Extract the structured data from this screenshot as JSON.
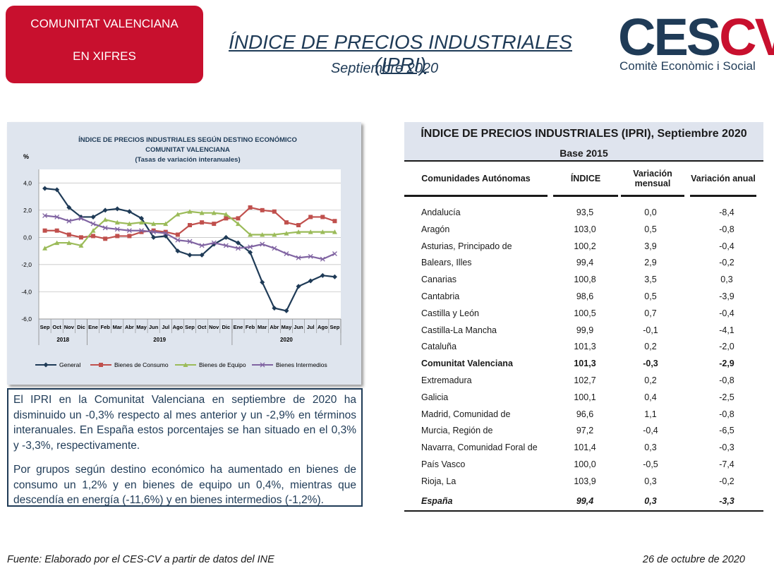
{
  "header": {
    "badge": [
      "COMUNITAT VALENCIANA",
      "EN XIFRES"
    ],
    "title": "ÍNDICE DE PRECIOS INDUSTRIALES (IPRI)",
    "subtitle": "Septiembre 2020",
    "logo": {
      "dark": "CES",
      "red": "CV",
      "tagline": "Comitè Econòmic i Social"
    }
  },
  "chart_data": {
    "type": "line",
    "title": [
      "ÍNDICE DE PRECIOS INDUSTRIALES SEGÚN DESTINO ECONÓMICO",
      "COMUNITAT VALENCIANA",
      "(Tasas de variación interanuales)"
    ],
    "ylabel": "%",
    "categories": [
      "Sep",
      "Oct",
      "Nov",
      "Dic",
      "Ene",
      "Feb",
      "Mar",
      "Abr",
      "May",
      "Jun",
      "Jul",
      "Ago",
      "Sep",
      "Oct",
      "Nov",
      "Dic",
      "Ene",
      "Feb",
      "Mar",
      "Abr",
      "May",
      "Jun",
      "Jul",
      "Ago",
      "Sep"
    ],
    "year_groups": [
      {
        "label": "2018",
        "count": 4
      },
      {
        "label": "2019",
        "count": 12
      },
      {
        "label": "2020",
        "count": 9
      }
    ],
    "ylim": [
      -6,
      5
    ],
    "yticks": [
      {
        "value": -6,
        "label": "-6,0"
      },
      {
        "value": -4,
        "label": "-4,0"
      },
      {
        "value": -2,
        "label": "-2,0"
      },
      {
        "value": 0,
        "label": "0,0"
      },
      {
        "value": 2,
        "label": "2,0"
      },
      {
        "value": 4,
        "label": "4,0"
      }
    ],
    "grid": true,
    "legend": "bottom",
    "series": [
      {
        "name": "General",
        "color": "#1f3b57",
        "marker": "diamond",
        "values": [
          3.6,
          3.5,
          2.2,
          1.5,
          1.5,
          2.0,
          2.1,
          1.9,
          1.4,
          0.0,
          0.1,
          -1.0,
          -1.3,
          -1.3,
          -0.5,
          0.0,
          -0.4,
          -1.1,
          -3.3,
          -5.2,
          -5.4,
          -3.6,
          -3.2,
          -2.8,
          -2.9
        ]
      },
      {
        "name": "Bienes de Consumo",
        "color": "#c0504d",
        "marker": "square",
        "values": [
          0.5,
          0.5,
          0.2,
          0.0,
          0.1,
          -0.1,
          0.1,
          0.1,
          0.4,
          0.5,
          0.4,
          0.2,
          0.9,
          1.1,
          1.0,
          1.4,
          1.4,
          2.2,
          2.0,
          1.9,
          1.1,
          0.9,
          1.5,
          1.5,
          1.2
        ]
      },
      {
        "name": "Bienes de Equipo",
        "color": "#9bbb59",
        "marker": "triangle",
        "values": [
          -0.8,
          -0.4,
          -0.4,
          -0.6,
          0.5,
          1.3,
          1.1,
          1.0,
          1.1,
          1.0,
          1.0,
          1.7,
          1.9,
          1.8,
          1.8,
          1.7,
          1.0,
          0.2,
          0.2,
          0.2,
          0.3,
          0.4,
          0.4,
          0.4,
          0.4
        ]
      },
      {
        "name": "Bienes Intermedios",
        "color": "#8064a2",
        "marker": "cross",
        "values": [
          1.6,
          1.5,
          1.2,
          1.4,
          1.0,
          0.7,
          0.6,
          0.5,
          0.5,
          0.4,
          0.3,
          -0.2,
          -0.3,
          -0.6,
          -0.4,
          -0.6,
          -0.8,
          -0.7,
          -0.5,
          -0.8,
          -1.2,
          -1.5,
          -1.4,
          -1.6,
          -1.2
        ]
      }
    ]
  },
  "text": {
    "paragraphs": [
      "El IPRI en la Comunitat Valenciana en septiembre de 2020 ha disminuido un -0,3% respecto al mes anterior y un -2,9% en términos interanuales. En España estos porcentajes se han situado en el 0,3% y -3,3%, respectivamente.",
      "Por grupos según destino económico ha aumentado en bienes de consumo un 1,2% y en bienes de equipo un 0,4%, mientras que descendía en energía (-11,6%) y en bienes intermedios (-1,2%)."
    ]
  },
  "table": {
    "title": "ÍNDICE DE PRECIOS INDUSTRIALES (IPRI), Septiembre 2020",
    "subtitle": "Base 2015",
    "columns": [
      "Comunidades Autónomas",
      "ÍNDICE",
      "Variación mensual",
      "Variación anual"
    ],
    "rows": [
      [
        "Andalucía",
        "93,5",
        "0,0",
        "-8,4"
      ],
      [
        "Aragón",
        "103,0",
        "0,5",
        "-0,8"
      ],
      [
        "Asturias, Principado de",
        "100,2",
        "3,9",
        "-0,4"
      ],
      [
        "Balears, Illes",
        "99,4",
        "2,9",
        "-0,2"
      ],
      [
        "Canarias",
        "100,8",
        "3,5",
        "0,3"
      ],
      [
        "Cantabria",
        "98,6",
        "0,5",
        "-3,9"
      ],
      [
        "Castilla y León",
        "100,5",
        "0,7",
        "-0,4"
      ],
      [
        "Castilla-La Mancha",
        "99,9",
        "-0,1",
        "-4,1"
      ],
      [
        "Cataluña",
        "101,3",
        "0,2",
        "-2,0"
      ],
      [
        "Comunitat Valenciana",
        "101,3",
        "-0,3",
        "-2,9"
      ],
      [
        "Extremadura",
        "102,7",
        "0,2",
        "-0,8"
      ],
      [
        "Galicia",
        "100,1",
        "0,4",
        "-2,5"
      ],
      [
        "Madrid, Comunidad de",
        "96,6",
        "1,1",
        "-0,8"
      ],
      [
        "Murcia, Región de",
        "97,2",
        "-0,4",
        "-6,5"
      ],
      [
        "Navarra, Comunidad Foral de",
        "101,4",
        "0,3",
        "-0,3"
      ],
      [
        "País Vasco",
        "100,0",
        "-0,5",
        "-7,4"
      ],
      [
        "Rioja, La",
        "103,9",
        "0,3",
        "-0,2"
      ]
    ],
    "total": [
      "España",
      "99,4",
      "0,3",
      "-3,3"
    ]
  },
  "footer": {
    "source": "Fuente: Elaborado por el CES-CV a partir de datos del INE",
    "date": "26 de octubre de 2020"
  }
}
